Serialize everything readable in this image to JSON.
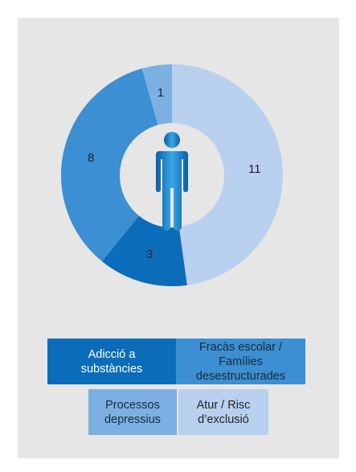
{
  "chart_data": {
    "type": "pie",
    "donut": true,
    "categories": [
      "Atur / Risc d’exclusió",
      "Adicció a substàncies",
      "Fracàs escolar / Famílies desestructurades",
      "Processos depressius"
    ],
    "values": [
      11,
      3,
      8,
      1
    ],
    "colors": [
      "#b9d0ef",
      "#0b6db9",
      "#3b8fd2",
      "#7cb0e3"
    ]
  }
}
